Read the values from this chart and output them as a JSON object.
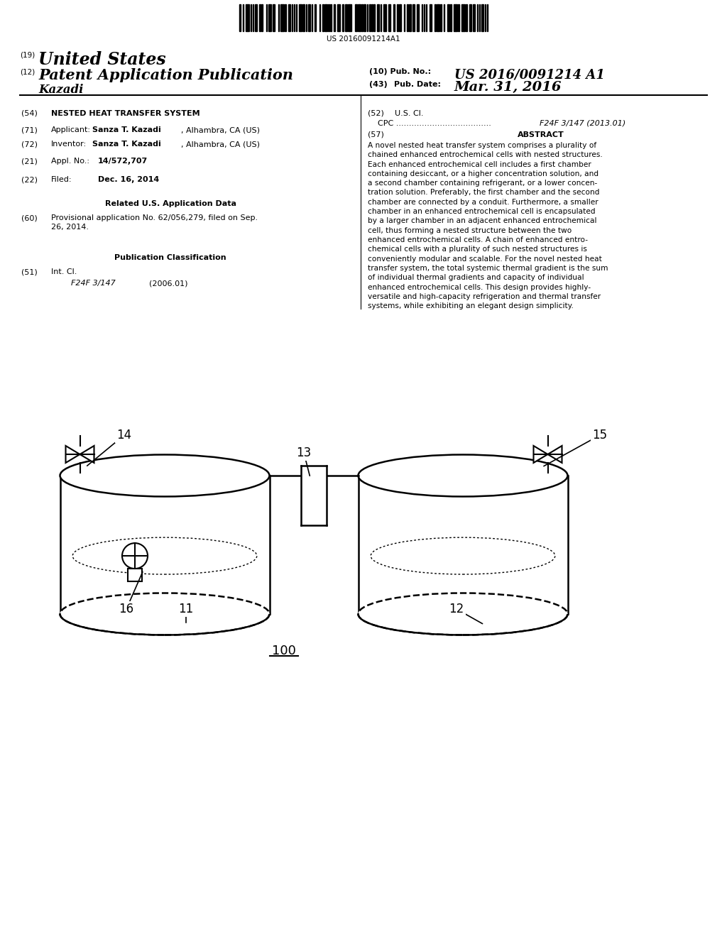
{
  "bg_color": "#ffffff",
  "barcode_text": "US 20160091214A1",
  "abstract_lines": [
    "A novel nested heat transfer system comprises a plurality of",
    "chained enhanced entrochemical cells with nested structures.",
    "Each enhanced entrochemical cell includes a first chamber",
    "containing desiccant, or a higher concentration solution, and",
    "a second chamber containing refrigerant, or a lower concen-",
    "tration solution. Preferably, the first chamber and the second",
    "chamber are connected by a conduit. Furthermore, a smaller",
    "chamber in an enhanced entrochemical cell is encapsulated",
    "by a larger chamber in an adjacent enhanced entrochemical",
    "cell, thus forming a nested structure between the two",
    "enhanced entrochemical cells. A chain of enhanced entro-",
    "chemical cells with a plurality of such nested structures is",
    "conveniently modular and scalable. For the novel nested heat",
    "transfer system, the total systemic thermal gradient is the sum",
    "of individual thermal gradients and capacity of individual",
    "enhanced entrochemical cells. This design provides highly-",
    "versatile and high-capacity refrigeration and thermal transfer",
    "systems, while exhibiting an elegant design simplicity."
  ]
}
